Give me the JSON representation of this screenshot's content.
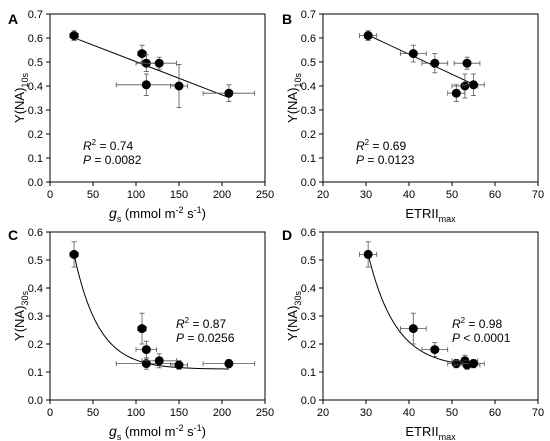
{
  "chart_data": [
    {
      "type": "scatter",
      "panel": "A",
      "xlabel": {
        "main": "g",
        "sub": "s",
        "rest": " (mmol m",
        "sup1": "-2",
        "mid": " s",
        "sup2": "-1",
        "end": ")"
      },
      "ylabel": {
        "main": "Y(NA)",
        "sub": "10s"
      },
      "xlim": [
        0,
        250
      ],
      "ylim": [
        0.0,
        0.7
      ],
      "xticks": [
        "0",
        "50",
        "100",
        "150",
        "200",
        "250"
      ],
      "yticks": [
        "0.0",
        "0.1",
        "0.2",
        "0.3",
        "0.4",
        "0.5",
        "0.6",
        "0.7"
      ],
      "fit": "linear",
      "stats": {
        "r2_label": "R",
        "r2_sup": "2",
        "r2_value": " = 0.74",
        "p_label": "P",
        "p_value": " = 0.0082"
      },
      "points": [
        {
          "x": 28,
          "y": 0.61,
          "xerr": 5,
          "yerr": 0.02
        },
        {
          "x": 107,
          "y": 0.535,
          "xerr": 5,
          "yerr": 0.035
        },
        {
          "x": 112,
          "y": 0.495,
          "xerr": 12,
          "yerr": 0.035
        },
        {
          "x": 112,
          "y": 0.405,
          "xerr": 35,
          "yerr": 0.045
        },
        {
          "x": 127,
          "y": 0.495,
          "xerr": 20,
          "yerr": 0.025
        },
        {
          "x": 150,
          "y": 0.4,
          "xerr": 10,
          "yerr": 0.09
        },
        {
          "x": 208,
          "y": 0.37,
          "xerr": 30,
          "yerr": 0.035
        }
      ]
    },
    {
      "type": "scatter",
      "panel": "B",
      "xlabel": {
        "main": "ETRII",
        "sub": "max"
      },
      "ylabel": {
        "main": "Y(NA)",
        "sub": "10s"
      },
      "xlim": [
        20,
        70
      ],
      "ylim": [
        0.0,
        0.7
      ],
      "xticks": [
        "20",
        "30",
        "40",
        "50",
        "60",
        "70"
      ],
      "yticks": [
        "0.0",
        "0.1",
        "0.2",
        "0.3",
        "0.4",
        "0.5",
        "0.6",
        "0.7"
      ],
      "fit": "linear",
      "stats": {
        "r2_label": "R",
        "r2_sup": "2",
        "r2_value": " = 0.69",
        "p_label": "P",
        "p_value": " = 0.0123"
      },
      "points": [
        {
          "x": 30.5,
          "y": 0.61,
          "xerr": 2,
          "yerr": 0.02
        },
        {
          "x": 41,
          "y": 0.535,
          "xerr": 3,
          "yerr": 0.035
        },
        {
          "x": 46,
          "y": 0.495,
          "xerr": 3,
          "yerr": 0.04
        },
        {
          "x": 51,
          "y": 0.37,
          "xerr": 2,
          "yerr": 0.035
        },
        {
          "x": 53,
          "y": 0.4,
          "xerr": 3,
          "yerr": 0.05
        },
        {
          "x": 53.5,
          "y": 0.495,
          "xerr": 3,
          "yerr": 0.025
        },
        {
          "x": 55,
          "y": 0.405,
          "xerr": 2.5,
          "yerr": 0.045
        }
      ]
    },
    {
      "type": "scatter",
      "panel": "C",
      "xlabel": {
        "main": "g",
        "sub": "s",
        "rest": " (mmol m",
        "sup1": "-2",
        "mid": " s",
        "sup2": "-1",
        "end": ")"
      },
      "ylabel": {
        "main": "Y(NA)",
        "sub": "30s"
      },
      "xlim": [
        0,
        250
      ],
      "ylim": [
        0.0,
        0.6
      ],
      "xticks": [
        "0",
        "50",
        "100",
        "150",
        "200",
        "250"
      ],
      "yticks": [
        "0.0",
        "0.1",
        "0.2",
        "0.3",
        "0.4",
        "0.5",
        "0.6"
      ],
      "fit": "exp_decay",
      "fit_params": {
        "y0": 0.11,
        "a": 0.65,
        "k": 0.035,
        "x0": 28
      },
      "stats": {
        "r2_label": "R",
        "r2_sup": "2",
        "r2_value": " = 0.87",
        "p_label": "P",
        "p_value": " = 0.0256"
      },
      "points": [
        {
          "x": 28,
          "y": 0.52,
          "xerr": 5,
          "yerr": 0.045
        },
        {
          "x": 107,
          "y": 0.255,
          "xerr": 5,
          "yerr": 0.055
        },
        {
          "x": 112,
          "y": 0.18,
          "xerr": 12,
          "yerr": 0.03
        },
        {
          "x": 112,
          "y": 0.13,
          "xerr": 35,
          "yerr": 0.02
        },
        {
          "x": 127,
          "y": 0.14,
          "xerr": 20,
          "yerr": 0.025
        },
        {
          "x": 150,
          "y": 0.125,
          "xerr": 10,
          "yerr": 0.015
        },
        {
          "x": 208,
          "y": 0.13,
          "xerr": 30,
          "yerr": 0.015
        }
      ]
    },
    {
      "type": "scatter",
      "panel": "D",
      "xlabel": {
        "main": "ETRII",
        "sub": "max"
      },
      "ylabel": {
        "main": "Y(NA)",
        "sub": "30s"
      },
      "xlim": [
        20,
        70
      ],
      "ylim": [
        0.0,
        0.6
      ],
      "xticks": [
        "20",
        "30",
        "40",
        "50",
        "60",
        "70"
      ],
      "yticks": [
        "0.0",
        "0.1",
        "0.2",
        "0.3",
        "0.4",
        "0.5",
        "0.6"
      ],
      "fit": "exp_decay",
      "fit_params": {
        "y0": 0.115,
        "a": 0.405,
        "k": 0.155,
        "x0": 30.5
      },
      "stats": {
        "r2_label": "R",
        "r2_sup": "2",
        "r2_value": " = 0.98",
        "p_label": "P",
        "p_value": " < 0.0001"
      },
      "points": [
        {
          "x": 30.5,
          "y": 0.52,
          "xerr": 2,
          "yerr": 0.045
        },
        {
          "x": 41,
          "y": 0.255,
          "xerr": 3,
          "yerr": 0.055
        },
        {
          "x": 46,
          "y": 0.18,
          "xerr": 3,
          "yerr": 0.025
        },
        {
          "x": 51,
          "y": 0.13,
          "xerr": 2,
          "yerr": 0.015
        },
        {
          "x": 53,
          "y": 0.14,
          "xerr": 3,
          "yerr": 0.02
        },
        {
          "x": 53.5,
          "y": 0.125,
          "xerr": 3,
          "yerr": 0.015
        },
        {
          "x": 55,
          "y": 0.13,
          "xerr": 2.5,
          "yerr": 0.015
        }
      ]
    }
  ]
}
